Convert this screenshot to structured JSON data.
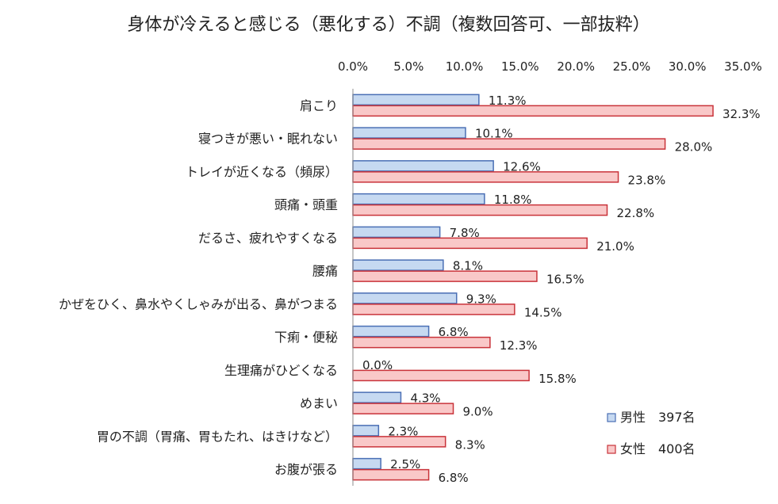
{
  "chart_data": {
    "type": "bar",
    "orientation": "horizontal",
    "title": "身体が冷えると感じる（悪化する）不調（複数回答可、一部抜粋）",
    "xlabel": "",
    "ylabel": "",
    "xlim": [
      0,
      35
    ],
    "x_ticks": [
      "0.0%",
      "5.0%",
      "10.0%",
      "15.0%",
      "20.0%",
      "25.0%",
      "30.0%",
      "35.0%"
    ],
    "x_axis_position": "top",
    "grid": false,
    "legend_position": "bottom-right",
    "categories": [
      "肩こり",
      "寝つきが悪い・眠れない",
      "トレイが近くなる（頻尿）",
      "頭痛・頭重",
      "だるさ、疲れやすくなる",
      "腰痛",
      "かぜをひく、鼻水やくしゃみが出る、鼻がつまる",
      "下痢・便秘",
      "生理痛がひどくなる",
      "めまい",
      "胃の不調（胃痛、胃もたれ、はきけなど）",
      "お腹が張る"
    ],
    "series": [
      {
        "name": "男性　397名",
        "color": "#c6d9f1",
        "border": "#4a6fb5",
        "values": [
          11.3,
          10.1,
          12.6,
          11.8,
          7.8,
          8.1,
          9.3,
          6.8,
          0.0,
          4.3,
          2.3,
          2.5
        ],
        "labels": [
          "11.3%",
          "10.1%",
          "12.6%",
          "11.8%",
          "7.8%",
          "8.1%",
          "9.3%",
          "6.8%",
          "0.0%",
          "4.3%",
          "2.3%",
          "2.5%"
        ]
      },
      {
        "name": "女性　400名",
        "color": "#f9c8c8",
        "border": "#c9333a",
        "values": [
          32.3,
          28.0,
          23.8,
          22.8,
          21.0,
          16.5,
          14.5,
          12.3,
          15.8,
          9.0,
          8.3,
          6.8
        ],
        "labels": [
          "32.3%",
          "28.0%",
          "23.8%",
          "22.8%",
          "21.0%",
          "16.5%",
          "14.5%",
          "12.3%",
          "15.8%",
          "9.0%",
          "8.3%",
          "6.8%"
        ]
      }
    ]
  }
}
